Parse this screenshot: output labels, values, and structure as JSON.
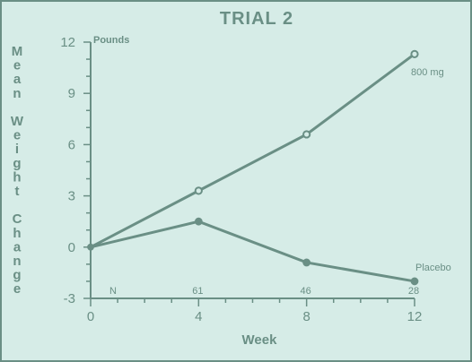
{
  "colors": {
    "ink": "#6a8f85",
    "background": "#d6ece7"
  },
  "chart_data": {
    "type": "line",
    "title": "TRIAL 2",
    "xlabel": "Week",
    "ylabel": "Mean Weight Change",
    "ylabel_words": [
      "Mean",
      "Weight",
      "Change"
    ],
    "y_unit": "Pounds",
    "xlim": [
      0,
      12
    ],
    "ylim": [
      -3,
      12
    ],
    "x_ticks": [
      0,
      4,
      8,
      12
    ],
    "y_ticks": [
      -3,
      0,
      3,
      6,
      9,
      12
    ],
    "grid": false,
    "n_row": {
      "label": "N",
      "values": [
        "61",
        "46",
        "28"
      ]
    },
    "series": [
      {
        "name": "800 mg",
        "marker": "open-circle",
        "x": [
          0,
          4,
          8,
          12
        ],
        "y": [
          0,
          3.3,
          6.6,
          11.3
        ]
      },
      {
        "name": "Placebo",
        "marker": "filled-circle",
        "x": [
          0,
          4,
          8,
          12
        ],
        "y": [
          0,
          1.5,
          -0.9,
          -2.0
        ]
      }
    ]
  }
}
